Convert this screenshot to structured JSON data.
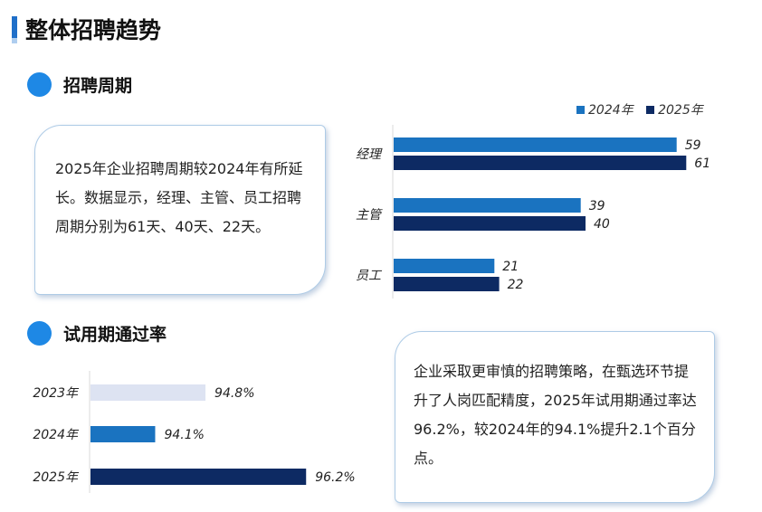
{
  "page": {
    "title": "整体招聘趋势"
  },
  "section1": {
    "title": "招聘周期",
    "callout": "2025年企业招聘周期较2024年有所延长。数据显示，经理、主管、员工招聘周期分别为61天、40天、22天。"
  },
  "section2": {
    "title": "试用期通过率",
    "callout": "企业采取更审慎的招聘策略，在甄选环节提升了人岗匹配精度，2025年试用期通过率达96.2%，较2024年的94.1%提升2.1个百分点。"
  },
  "colors": {
    "c2023": "#dde3f2",
    "c2024": "#1a73c0",
    "c2025": "#0d2a63",
    "accent": "#1e88e5"
  },
  "chart_data": [
    {
      "type": "bar",
      "orientation": "horizontal",
      "categories": [
        "经理",
        "主管",
        "员工"
      ],
      "series": [
        {
          "name": "2024年",
          "values": [
            59,
            39,
            21
          ]
        },
        {
          "name": "2025年",
          "values": [
            61,
            40,
            22
          ]
        }
      ],
      "legend": "top-right",
      "xlim": [
        0,
        64
      ]
    },
    {
      "type": "bar",
      "orientation": "horizontal",
      "categories": [
        "2023年",
        "2024年",
        "2025年"
      ],
      "values": [
        94.8,
        94.1,
        96.2
      ],
      "labels": [
        "94.8%",
        "94.1%",
        "96.2%"
      ],
      "xlim": [
        93.2,
        96.6
      ]
    }
  ]
}
